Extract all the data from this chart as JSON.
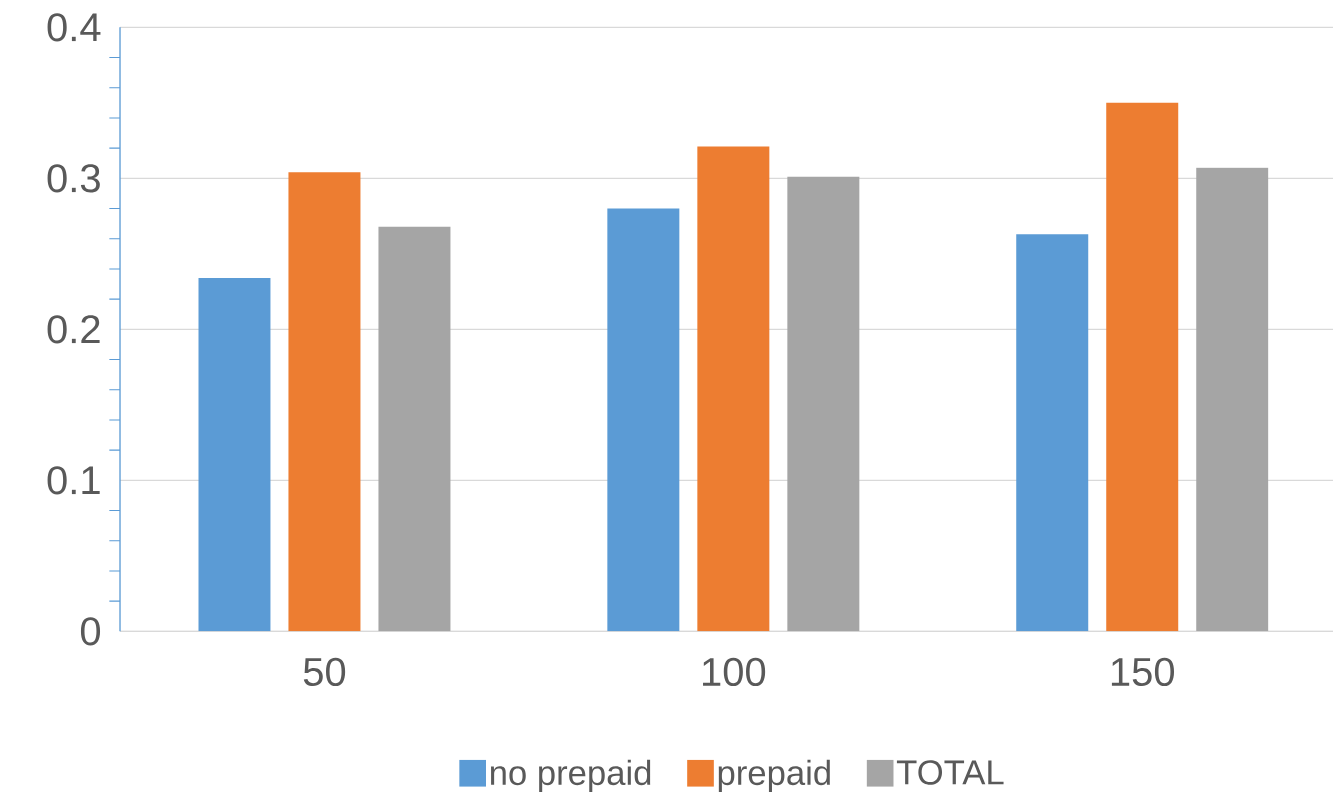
{
  "chart_data": {
    "type": "bar",
    "categories": [
      "50",
      "100",
      "150"
    ],
    "series": [
      {
        "name": "no prepaid",
        "color": "#5b9bd5",
        "values": [
          0.234,
          0.28,
          0.263
        ]
      },
      {
        "name": "prepaid",
        "color": "#ed7d31",
        "values": [
          0.304,
          0.321,
          0.35
        ]
      },
      {
        "name": "TOTAL",
        "color": "#a5a5a5",
        "values": [
          0.268,
          0.301,
          0.307
        ]
      }
    ],
    "ylim": [
      0,
      0.4
    ],
    "yticks": [
      0,
      0.1,
      0.2,
      0.3,
      0.4
    ],
    "grid": "y",
    "legend": "bottom"
  }
}
